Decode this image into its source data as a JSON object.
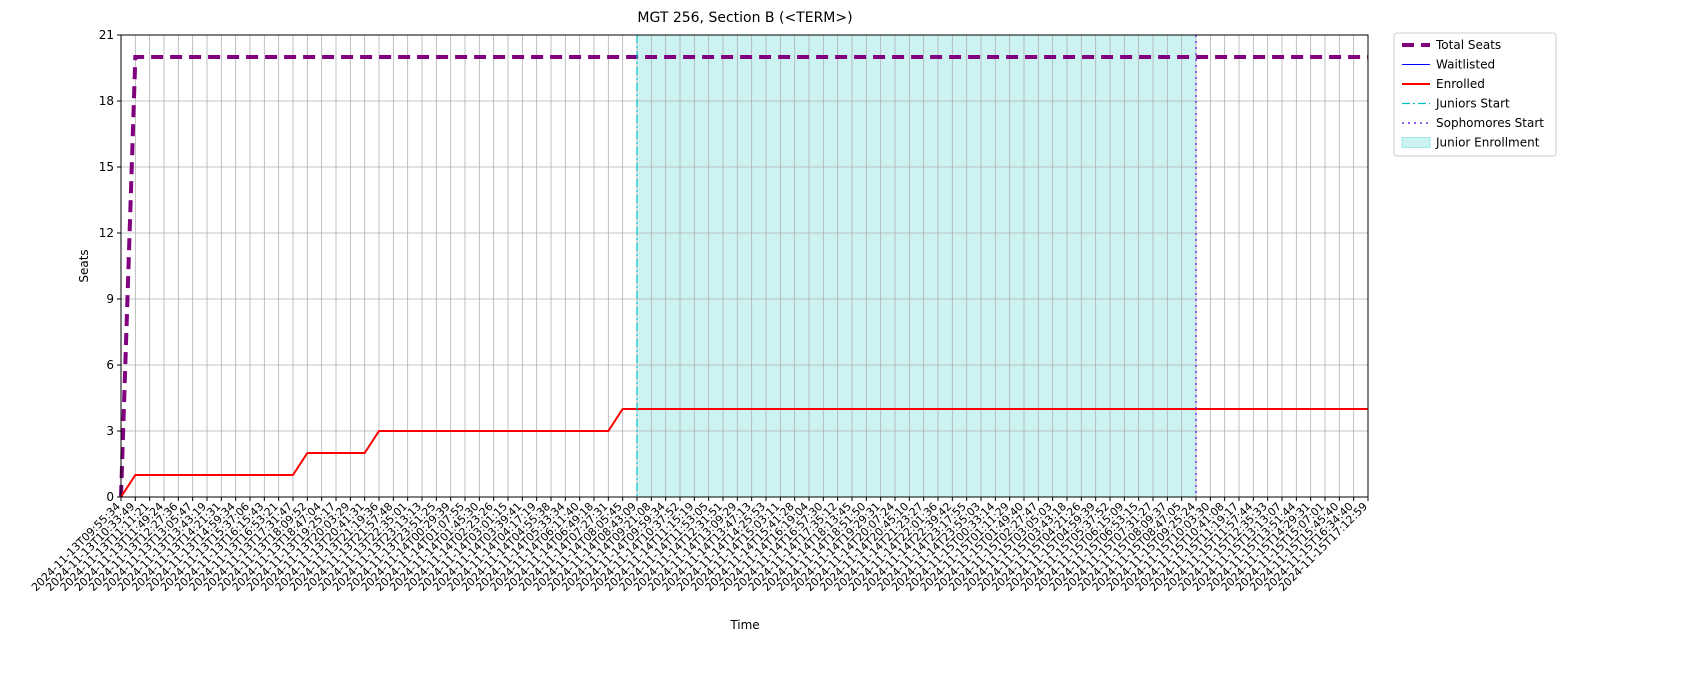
{
  "chart_data": {
    "type": "line",
    "title": "MGT 256, Section B (<TERM>)",
    "x_label": "Time",
    "y_label": "Seats",
    "categories": [
      "2024-11-13T09:55:34",
      "2024-11-13T10:33:49",
      "2024-11-13T11:11:21",
      "2024-11-13T11:49:24",
      "2024-11-13T12:27:36",
      "2024-11-13T13:05:47",
      "2024-11-13T13:43:19",
      "2024-11-13T14:21:31",
      "2024-11-13T14:59:34",
      "2024-11-13T15:37:06",
      "2024-11-13T16:15:43",
      "2024-11-13T16:53:21",
      "2024-11-13T17:31:47",
      "2024-11-13T18:09:52",
      "2024-11-13T18:47:04",
      "2024-11-13T19:25:17",
      "2024-11-13T20:03:29",
      "2024-11-13T20:41:31",
      "2024-11-13T21:19:36",
      "2024-11-13T21:57:48",
      "2024-11-13T22:35:01",
      "2024-11-13T23:13:13",
      "2024-11-13T23:51:25",
      "2024-11-14T00:29:39",
      "2024-11-14T01:07:55",
      "2024-11-14T01:45:30",
      "2024-11-14T02:23:26",
      "2024-11-14T03:01:15",
      "2024-11-14T03:39:41",
      "2024-11-14T04:17:19",
      "2024-11-14T04:55:38",
      "2024-11-14T05:33:34",
      "2024-11-14T06:11:40",
      "2024-11-14T06:49:18",
      "2024-11-14T07:27:31",
      "2024-11-14T08:05:45",
      "2024-11-14T08:43:09",
      "2024-11-14T09:21:08",
      "2024-11-14T09:59:34",
      "2024-11-14T10:37:52",
      "2024-11-14T11:15:19",
      "2024-11-14T11:53:05",
      "2024-11-14T12:31:51",
      "2024-11-14T13:09:29",
      "2024-11-14T13:47:13",
      "2024-11-14T14:25:53",
      "2024-11-14T15:03:11",
      "2024-11-14T15:41:28",
      "2024-11-14T16:19:04",
      "2024-11-14T16:57:30",
      "2024-11-14T17:35:12",
      "2024-11-14T18:13:45",
      "2024-11-14T18:51:50",
      "2024-11-14T19:29:31",
      "2024-11-14T20:07:24",
      "2024-11-14T20:45:10",
      "2024-11-14T21:23:27",
      "2024-11-14T22:01:36",
      "2024-11-14T22:39:42",
      "2024-11-14T23:17:55",
      "2024-11-14T23:55:03",
      "2024-11-15T00:33:14",
      "2024-11-15T01:11:29",
      "2024-11-15T01:49:40",
      "2024-11-15T02:27:47",
      "2024-11-15T03:05:03",
      "2024-11-15T03:43:18",
      "2024-11-15T04:21:26",
      "2024-11-15T04:59:39",
      "2024-11-15T05:37:52",
      "2024-11-15T06:15:09",
      "2024-11-15T06:53:15",
      "2024-11-15T07:31:27",
      "2024-11-15T08:09:37",
      "2024-11-15T08:47:05",
      "2024-11-15T09:25:24",
      "2024-11-15T10:03:30",
      "2024-11-15T10:41:08",
      "2024-11-15T11:19:17",
      "2024-11-15T11:57:44",
      "2024-11-15T12:35:33",
      "2024-11-15T13:13:07",
      "2024-11-15T13:51:44",
      "2024-11-15T14:29:31",
      "2024-11-15T15:07:01",
      "2024-11-15T15:45:40",
      "2024-11-15T16:34:40",
      "2024-11-15T17:12:59"
    ],
    "series": [
      {
        "name": "Total Seats",
        "color": "#800080",
        "width": 4,
        "dash": "12,7",
        "values": [
          0,
          20,
          20,
          20,
          20,
          20,
          20,
          20,
          20,
          20,
          20,
          20,
          20,
          20,
          20,
          20,
          20,
          20,
          20,
          20,
          20,
          20,
          20,
          20,
          20,
          20,
          20,
          20,
          20,
          20,
          20,
          20,
          20,
          20,
          20,
          20,
          20,
          20,
          20,
          20,
          20,
          20,
          20,
          20,
          20,
          20,
          20,
          20,
          20,
          20,
          20,
          20,
          20,
          20,
          20,
          20,
          20,
          20,
          20,
          20,
          20,
          20,
          20,
          20,
          20,
          20,
          20,
          20,
          20,
          20,
          20,
          20,
          20,
          20,
          20,
          20,
          20,
          20,
          20,
          20,
          20,
          20,
          20,
          20,
          20,
          20,
          20,
          20
        ]
      },
      {
        "name": "Waitlisted",
        "color": "#0000ff",
        "width": 1,
        "dash": "",
        "values": [
          0,
          0,
          0,
          0,
          0,
          0,
          0,
          0,
          0,
          0,
          0,
          0,
          0,
          0,
          0,
          0,
          0,
          0,
          0,
          0,
          0,
          0,
          0,
          0,
          0,
          0,
          0,
          0,
          0,
          0,
          0,
          0,
          0,
          0,
          0,
          0,
          0,
          0,
          0,
          0,
          0,
          0,
          0,
          0,
          0,
          0,
          0,
          0,
          0,
          0,
          0,
          0,
          0,
          0,
          0,
          0,
          0,
          0,
          0,
          0,
          0,
          0,
          0,
          0,
          0,
          0,
          0,
          0,
          0,
          0,
          0,
          0,
          0,
          0,
          0,
          0,
          0,
          0,
          0,
          0,
          0,
          0,
          0,
          0,
          0,
          0,
          0,
          0
        ]
      },
      {
        "name": "Enrolled",
        "color": "#ff0000",
        "width": 2,
        "dash": "",
        "values": [
          0,
          1,
          1,
          1,
          1,
          1,
          1,
          1,
          1,
          1,
          1,
          1,
          1,
          2,
          2,
          2,
          2,
          2,
          3,
          3,
          3,
          3,
          3,
          3,
          3,
          3,
          3,
          3,
          3,
          3,
          3,
          3,
          3,
          3,
          3,
          4,
          4,
          4,
          4,
          4,
          4,
          4,
          4,
          4,
          4,
          4,
          4,
          4,
          4,
          4,
          4,
          4,
          4,
          4,
          4,
          4,
          4,
          4,
          4,
          4,
          4,
          4,
          4,
          4,
          4,
          4,
          4,
          4,
          4,
          4,
          4,
          4,
          4,
          4,
          4,
          4,
          4,
          4,
          4,
          4,
          4,
          4,
          4,
          4,
          4,
          4,
          4,
          4
        ]
      }
    ],
    "vlines": [
      {
        "name": "Juniors Start",
        "x": "2024-11-14T08:43:09",
        "color": "#00bfbf",
        "dash": "8,3,2,3"
      },
      {
        "name": "Sophomores Start",
        "x": "2024-11-15T09:25:24",
        "color": "#5500ee",
        "dash": "2,4"
      }
    ],
    "spans": [
      {
        "name": "Junior Enrollment",
        "from": "2024-11-14T08:43:09",
        "to": "2024-11-15T09:25:24",
        "color": "#00bfbf"
      }
    ],
    "ylim": [
      0,
      21
    ],
    "yticks": [
      0,
      3,
      6,
      9,
      12,
      15,
      18,
      21
    ],
    "grid": true
  }
}
